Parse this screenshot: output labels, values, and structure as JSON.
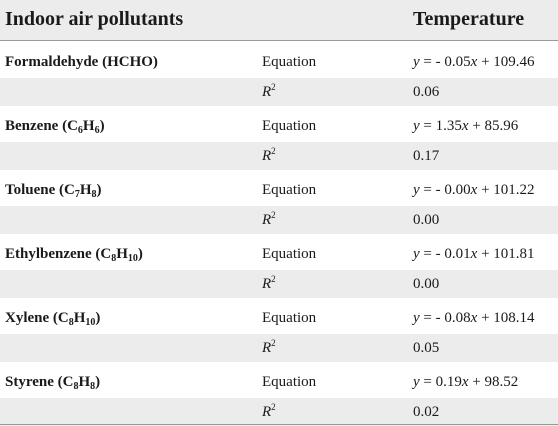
{
  "header": {
    "pollutants_label": "Indoor air pollutants",
    "temperature_label": "Temperature"
  },
  "rows": [
    {
      "name_main": "Formaldehyde (HCHO)",
      "name_sub": "",
      "name_mid": "",
      "name_sub2": "",
      "name_end": "",
      "equation_label": "Equation",
      "eq_y": "y",
      "eq_mid": " = - 0.05",
      "eq_x": "x",
      "eq_tail": " + 109.46",
      "r2_label": "R",
      "r2_sup": "2",
      "r2_value": "0.06"
    },
    {
      "name_main": "Benzene (C",
      "name_sub": "6",
      "name_mid": "H",
      "name_sub2": "6",
      "name_end": ")",
      "equation_label": "Equation",
      "eq_y": "y",
      "eq_mid": " = 1.35",
      "eq_x": "x",
      "eq_tail": " + 85.96",
      "r2_label": "R",
      "r2_sup": "2",
      "r2_value": "0.17"
    },
    {
      "name_main": "Toluene (C",
      "name_sub": "7",
      "name_mid": "H",
      "name_sub2": "8",
      "name_end": ")",
      "equation_label": "Equation",
      "eq_y": "y",
      "eq_mid": " = - 0.00",
      "eq_x": "x",
      "eq_tail": " + 101.22",
      "r2_label": "R",
      "r2_sup": "2",
      "r2_value": "0.00"
    },
    {
      "name_main": "Ethylbenzene (C",
      "name_sub": "8",
      "name_mid": "H",
      "name_sub2": "10",
      "name_end": ")",
      "equation_label": "Equation",
      "eq_y": "y",
      "eq_mid": " = - 0.01",
      "eq_x": "x",
      "eq_tail": " + 101.81",
      "r2_label": "R",
      "r2_sup": "2",
      "r2_value": "0.00"
    },
    {
      "name_main": "Xylene (C",
      "name_sub": "8",
      "name_mid": "H",
      "name_sub2": "10",
      "name_end": ")",
      "equation_label": "Equation",
      "eq_y": "y",
      "eq_mid": " = - 0.08",
      "eq_x": "x",
      "eq_tail": " + 108.14",
      "r2_label": "R",
      "r2_sup": "2",
      "r2_value": "0.05"
    },
    {
      "name_main": "Styrene (C",
      "name_sub": "8",
      "name_mid": "H",
      "name_sub2": "8",
      "name_end": ")",
      "equation_label": "Equation",
      "eq_y": "y",
      "eq_mid": " = 0.19",
      "eq_x": "x",
      "eq_tail": " + 98.52",
      "r2_label": "R",
      "r2_sup": "2",
      "r2_value": "0.02"
    }
  ]
}
